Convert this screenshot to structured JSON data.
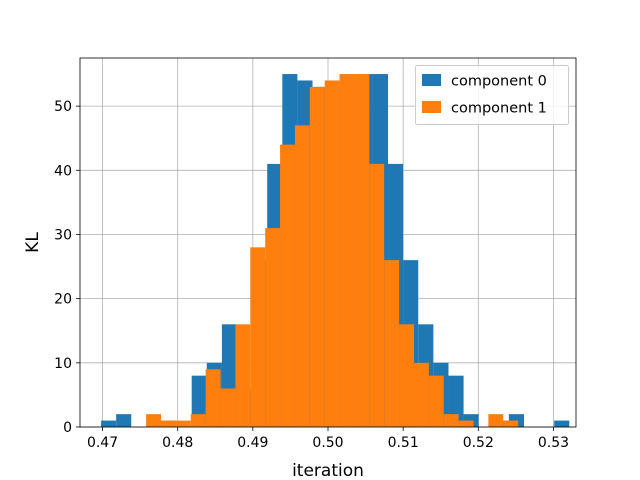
{
  "chart_data": {
    "type": "histogram",
    "title": "",
    "xlabel": "iteration",
    "ylabel": "KL",
    "xlim": [
      0.467,
      0.533
    ],
    "ylim": [
      0,
      57.5
    ],
    "grid": true,
    "legend_position": "top-right",
    "x_ticks": [
      0.47,
      0.48,
      0.49,
      0.5,
      0.51,
      0.52,
      0.53
    ],
    "x_tick_labels": [
      "0.47",
      "0.48",
      "0.49",
      "0.50",
      "0.51",
      "0.52",
      "0.53"
    ],
    "y_ticks": [
      0,
      10,
      20,
      30,
      40,
      50
    ],
    "y_tick_labels": [
      "0",
      "10",
      "20",
      "30",
      "40",
      "50"
    ],
    "series": [
      {
        "name": "component 0",
        "color": "#1f77b4",
        "bin_start": 0.4698,
        "bin_width": 0.00201,
        "counts": [
          1,
          2,
          0,
          0,
          1,
          0,
          8,
          10,
          16,
          6,
          26,
          41,
          55,
          54,
          53,
          53,
          54,
          55,
          55,
          41,
          26,
          16,
          10,
          8,
          2,
          0,
          1,
          2,
          0,
          0,
          1
        ]
      },
      {
        "name": "component 1",
        "color": "#ff7f0e",
        "bin_start": 0.4758,
        "bin_width": 0.00198,
        "counts": [
          2,
          1,
          1,
          2,
          9,
          6,
          16,
          28,
          31,
          44,
          47,
          53,
          54,
          55,
          55,
          41,
          26,
          16,
          10,
          8,
          2,
          1,
          0,
          2,
          1
        ]
      }
    ]
  },
  "legend": {
    "items": [
      {
        "label": "component 0",
        "color": "#1f77b4"
      },
      {
        "label": "component 1",
        "color": "#ff7f0e"
      }
    ]
  }
}
